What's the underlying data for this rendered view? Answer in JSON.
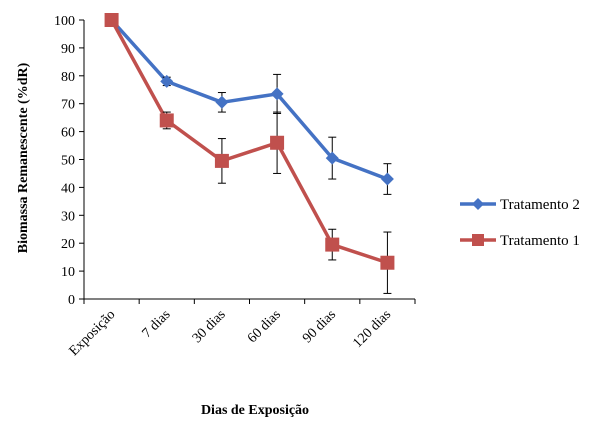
{
  "chart_data": {
    "type": "line",
    "categories": [
      "Exposição",
      "7 dias",
      "30 dias",
      "60 dias",
      "90 dias",
      "120 dias"
    ],
    "series": [
      {
        "name": "Tratamento 2",
        "color": "#4472C4",
        "marker": "diamond",
        "values": [
          100,
          78,
          70.5,
          73.5,
          50.5,
          43
        ],
        "error": [
          0,
          1.5,
          3.5,
          7,
          7.5,
          5.5
        ]
      },
      {
        "name": "Tratamento 1",
        "color": "#C0504D",
        "marker": "square",
        "values": [
          100,
          64,
          49.5,
          56,
          19.5,
          13
        ],
        "error": [
          0,
          3,
          8,
          11,
          5.5,
          11
        ]
      }
    ],
    "xlabel": "Dias de Exposição",
    "ylabel": "Biomassa Remanescente (%dR)",
    "ylim": [
      0,
      100
    ],
    "yticks": [
      0,
      10,
      20,
      30,
      40,
      50,
      60,
      70,
      80,
      90,
      100
    ],
    "grid": false,
    "legend_position": "right"
  }
}
